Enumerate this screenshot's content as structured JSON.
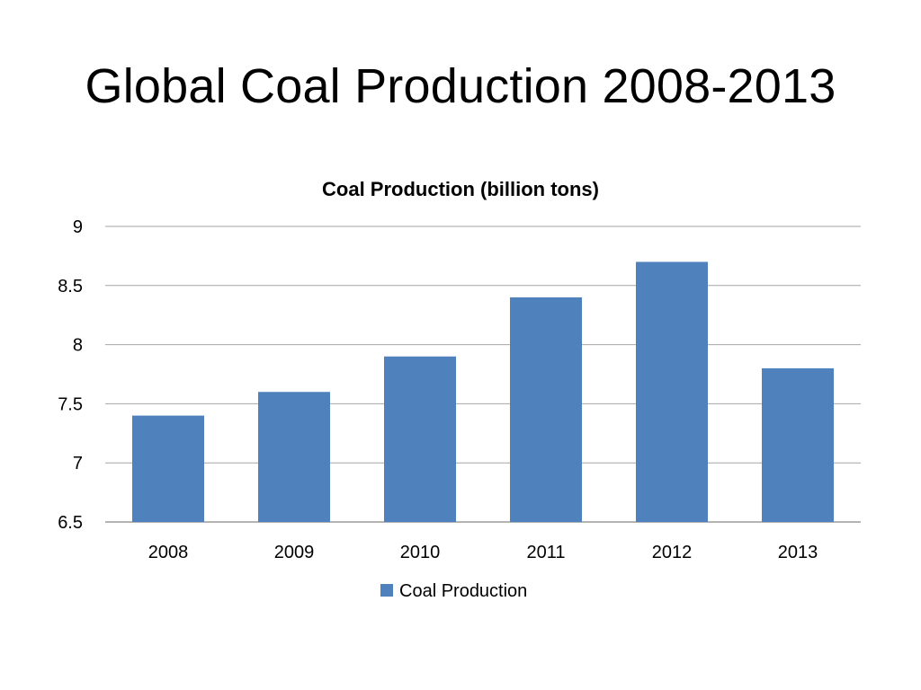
{
  "slide": {
    "title": "Global Coal Production 2008-2013"
  },
  "colors": {
    "bar": "#4f81bd",
    "gridline": "#a6a6a6",
    "axis": "#868686"
  },
  "chart_data": {
    "type": "bar",
    "title": "Coal Production  (billion tons)",
    "xlabel": "",
    "ylabel": "",
    "categories": [
      "2008",
      "2009",
      "2010",
      "2011",
      "2012",
      "2013"
    ],
    "series": [
      {
        "name": "Coal Production",
        "values": [
          7.4,
          7.6,
          7.9,
          8.4,
          8.7,
          7.8
        ]
      }
    ],
    "ylim": [
      6.5,
      9
    ],
    "yticks": [
      "6.5",
      "7",
      "7.5",
      "8",
      "8.5",
      "9"
    ],
    "grid": true,
    "legend_position": "bottom"
  }
}
